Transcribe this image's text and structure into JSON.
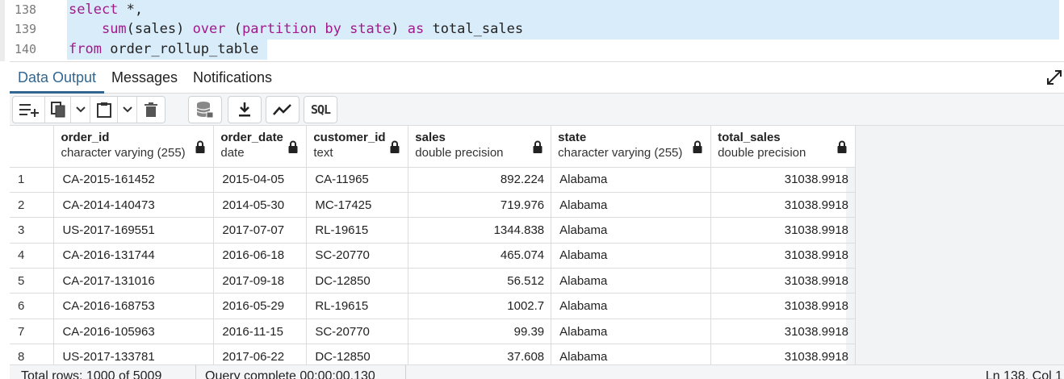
{
  "editor": {
    "lines": [
      {
        "num": "138",
        "parts": [
          [
            "kw",
            "select"
          ],
          [
            "txt",
            " *,"
          ]
        ]
      },
      {
        "num": "139",
        "parts": [
          [
            "txt",
            "    "
          ],
          [
            "kw",
            "sum"
          ],
          [
            "txt",
            "(sales) "
          ],
          [
            "kw",
            "over"
          ],
          [
            "txt",
            " ("
          ],
          [
            "kw",
            "partition by"
          ],
          [
            "txt",
            " "
          ],
          [
            "kw",
            "state"
          ],
          [
            "txt",
            ") "
          ],
          [
            "kw",
            "as"
          ],
          [
            "txt",
            " total_sales"
          ]
        ]
      },
      {
        "num": "140",
        "parts": [
          [
            "kw",
            "from"
          ],
          [
            "txt",
            " order_rollup_table"
          ]
        ]
      }
    ]
  },
  "tabs": [
    {
      "label": "Data Output",
      "active": true
    },
    {
      "label": "Messages",
      "active": false
    },
    {
      "label": "Notifications",
      "active": false
    }
  ],
  "toolbar": {
    "sql_label": "SQL"
  },
  "grid": {
    "columns": [
      {
        "name": "order_id",
        "type": "character varying (255)"
      },
      {
        "name": "order_date",
        "type": "date"
      },
      {
        "name": "customer_id",
        "type": "text"
      },
      {
        "name": "sales",
        "type": "double precision"
      },
      {
        "name": "state",
        "type": "character varying (255)"
      },
      {
        "name": "total_sales",
        "type": "double precision"
      }
    ],
    "rows": [
      [
        "1",
        "CA-2015-161452",
        "2015-04-05",
        "CA-11965",
        "892.224",
        "Alabama",
        "31038.9918"
      ],
      [
        "2",
        "CA-2014-140473",
        "2014-05-30",
        "MC-17425",
        "719.976",
        "Alabama",
        "31038.9918"
      ],
      [
        "3",
        "US-2017-169551",
        "2017-07-07",
        "RL-19615",
        "1344.838",
        "Alabama",
        "31038.9918"
      ],
      [
        "4",
        "CA-2016-131744",
        "2016-06-18",
        "SC-20770",
        "465.074",
        "Alabama",
        "31038.9918"
      ],
      [
        "5",
        "CA-2017-131016",
        "2017-09-18",
        "DC-12850",
        "56.512",
        "Alabama",
        "31038.9918"
      ],
      [
        "6",
        "CA-2016-168753",
        "2016-05-29",
        "RL-19615",
        "1002.7",
        "Alabama",
        "31038.9918"
      ],
      [
        "7",
        "CA-2016-105963",
        "2016-11-15",
        "SC-20770",
        "99.39",
        "Alabama",
        "31038.9918"
      ],
      [
        "8",
        "US-2017-133781",
        "2017-06-22",
        "DC-12850",
        "37.608",
        "Alabama",
        "31038.9918"
      ]
    ]
  },
  "status": {
    "rows": "Total rows: 1000 of 5009",
    "query": "Query complete 00:00:00.130",
    "position": "Ln 138, Col 1"
  }
}
